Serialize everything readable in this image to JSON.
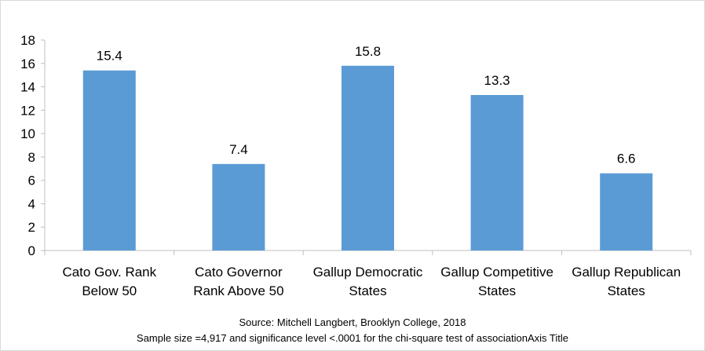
{
  "chart_data": {
    "type": "bar",
    "categories": [
      [
        "Cato Gov. Rank",
        "Below 50"
      ],
      [
        "Cato Governor",
        "Rank Above 50"
      ],
      [
        "Gallup Democratic",
        "States"
      ],
      [
        "Gallup Competitive",
        "States"
      ],
      [
        "Gallup Republican",
        "States"
      ]
    ],
    "values": [
      15.4,
      7.4,
      15.8,
      13.3,
      6.6
    ],
    "data_labels": [
      "15.4",
      "7.4",
      "15.8",
      "13.3",
      "6.6"
    ],
    "ylim": [
      0,
      18
    ],
    "yticks": [
      0,
      2,
      4,
      6,
      8,
      10,
      12,
      14,
      16,
      18
    ],
    "bar_color": "#5b9bd5",
    "grid": false,
    "legend": "none",
    "footnote": [
      "Source: Mitchell Langbert, Brooklyn College, 2018",
      "Sample size =4,917 and significance level <.0001 for the chi-square test of associationAxis Title"
    ]
  }
}
